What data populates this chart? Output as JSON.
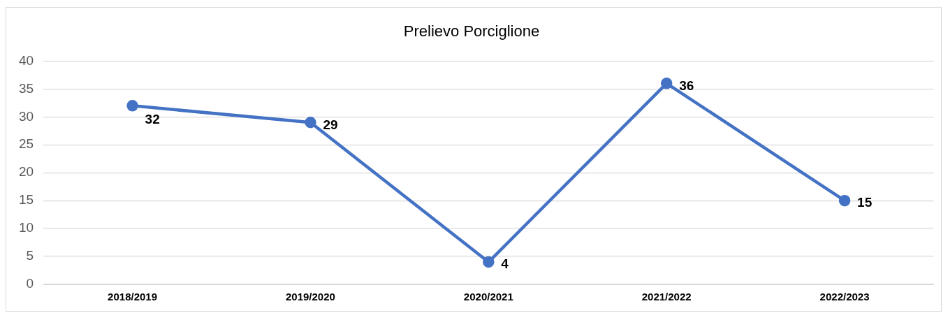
{
  "chart_data": {
    "type": "line",
    "title": "Prelievo Porciglione",
    "categories": [
      "2018/2019",
      "2019/2020",
      "2020/2021",
      "2021/2022",
      "2022/2023"
    ],
    "series": [
      {
        "color": "#4472c4",
        "values": [
          32,
          29,
          4,
          36,
          15
        ]
      }
    ],
    "ylim": [
      0,
      40
    ],
    "yticks": [
      0,
      5,
      10,
      15,
      20,
      25,
      30,
      35,
      40
    ],
    "grid": "y",
    "marker": "circle",
    "data_labels": true
  }
}
